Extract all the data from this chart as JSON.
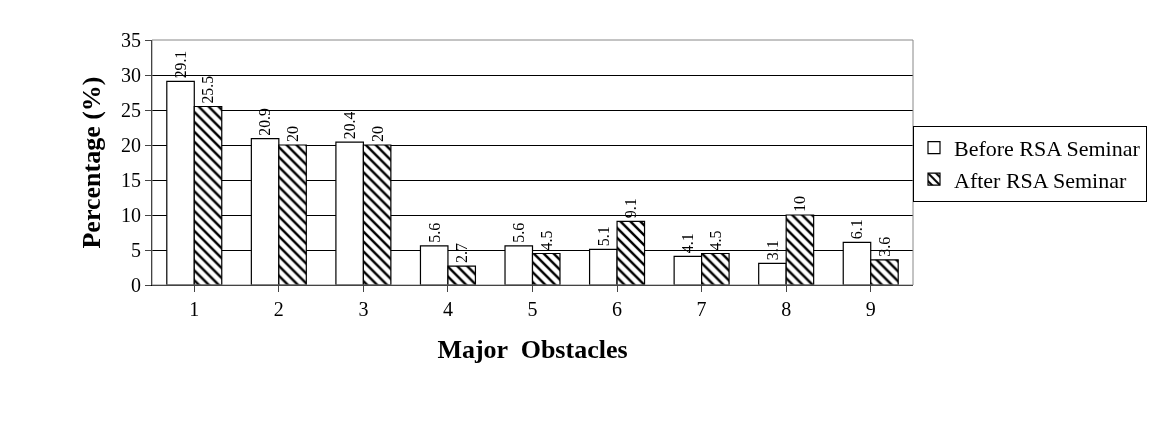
{
  "chart_data": {
    "type": "bar",
    "xlabel": "Major  Obstacles",
    "ylabel": "Percentage (%)",
    "categories": [
      "1",
      "2",
      "3",
      "4",
      "5",
      "6",
      "7",
      "8",
      "9"
    ],
    "series": [
      {
        "name": "Before RSA Seminar",
        "color": "#ffffff",
        "values": [
          29.1,
          20.9,
          20.4,
          5.6,
          5.6,
          5.1,
          4.1,
          3.1,
          6.1
        ]
      },
      {
        "name": "After RSA Seminar",
        "color": "#000000",
        "values": [
          25.5,
          20,
          20,
          2.7,
          4.5,
          9.1,
          4.5,
          10,
          3.6
        ]
      }
    ],
    "ylim": [
      0,
      35
    ],
    "yticks": [
      0,
      5,
      10,
      15,
      20,
      25,
      30,
      35
    ],
    "grid": "y",
    "legend": "top right",
    "data_labels": true
  }
}
